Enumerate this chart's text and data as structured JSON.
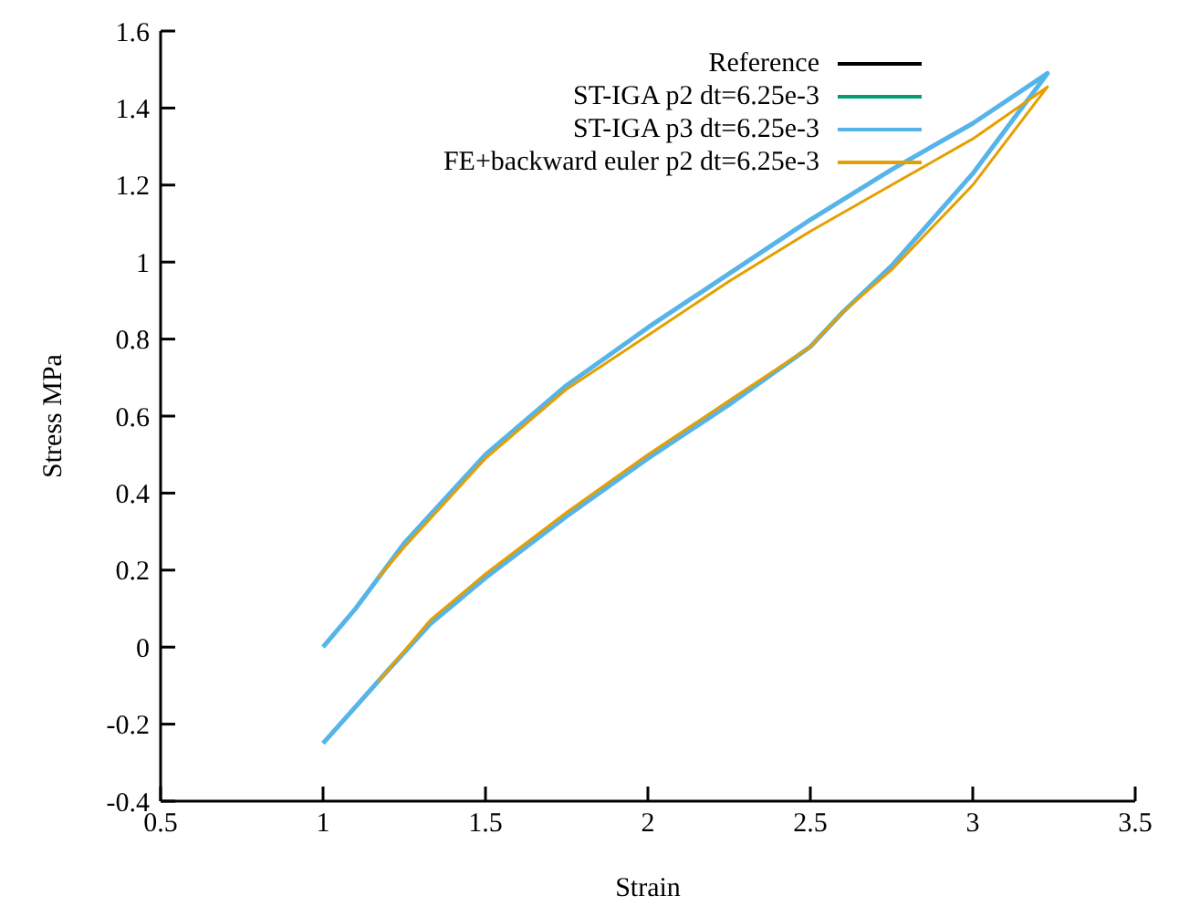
{
  "chart_data": {
    "type": "line",
    "xlabel": "Strain",
    "ylabel": "Stress MPa",
    "xlim": [
      0.5,
      3.5
    ],
    "xticks": [
      0.5,
      1,
      1.5,
      2,
      2.5,
      3,
      3.5
    ],
    "ylim": [
      -0.4,
      1.6
    ],
    "yticks": [
      -0.4,
      -0.2,
      0,
      0.2,
      0.4,
      0.6,
      0.8,
      1,
      1.2,
      1.4,
      1.6
    ],
    "legend": "top right",
    "marker": "none",
    "line_style": "solid",
    "series": [
      {
        "name": "Reference",
        "color": "#000000"
      },
      {
        "name": "ST-IGA p2 dt=6.25e-3",
        "color": "#009e73"
      },
      {
        "name": "ST-IGA p3 dt=6.25e-3",
        "color": "#56b4e9",
        "x": [
          1,
          1.1,
          1.25,
          1.5,
          1.75,
          2,
          2.25,
          2.5,
          2.75,
          3,
          3.23,
          3,
          2.75,
          2.6,
          2.5,
          2.25,
          2,
          1.75,
          1.5,
          1.33,
          1.2,
          1
        ],
        "values": [
          0,
          0.1,
          0.27,
          0.5,
          0.68,
          0.83,
          0.97,
          1.11,
          1.24,
          1.36,
          1.49,
          1.23,
          0.99,
          0.87,
          0.78,
          0.63,
          0.49,
          0.34,
          0.18,
          0.06,
          -0.06,
          -0.25
        ]
      },
      {
        "name": "FE+backward euler p2 dt=6.25e-3",
        "color": "#e69f00",
        "x": [
          1.17,
          1.25,
          1.5,
          1.75,
          2,
          2.25,
          2.5,
          2.75,
          3,
          3.23,
          3,
          2.75,
          2.6,
          2.5,
          2.25,
          2,
          1.75,
          1.5,
          1.33,
          1.17
        ],
        "values": [
          0.18,
          0.26,
          0.49,
          0.67,
          0.81,
          0.95,
          1.08,
          1.2,
          1.32,
          1.455,
          1.2,
          0.98,
          0.87,
          0.78,
          0.64,
          0.5,
          0.35,
          0.19,
          0.07,
          -0.09
        ]
      }
    ]
  }
}
